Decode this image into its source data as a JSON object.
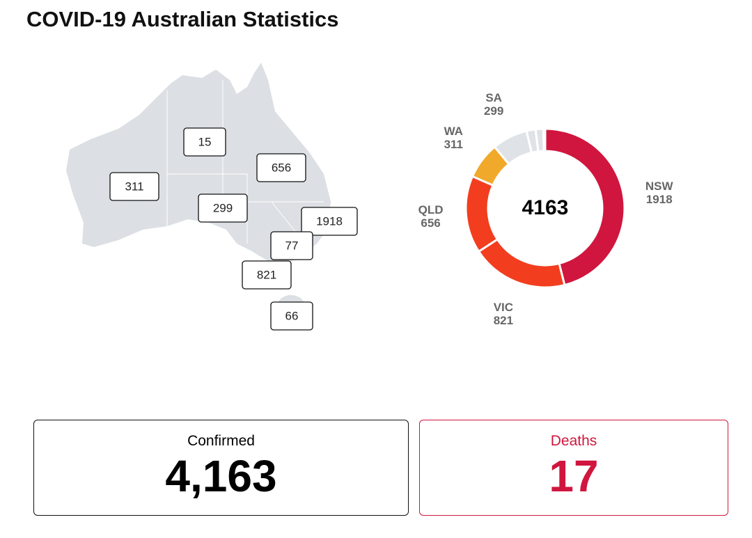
{
  "header": {
    "title": "COVID-19 Australian Statistics"
  },
  "map": {
    "labels": [
      15,
      656,
      311,
      299,
      1918,
      77,
      821,
      66
    ]
  },
  "chart_data": {
    "type": "pie",
    "donut": true,
    "total": 4163,
    "categories": [
      "NSW",
      "VIC",
      "QLD",
      "WA",
      "SA",
      null,
      null,
      null
    ],
    "values": [
      1918,
      821,
      656,
      311,
      299,
      77,
      66,
      15
    ],
    "colors": [
      "#d0163e",
      "#f23e1f",
      "#f23e1f",
      "#f0a92a",
      "#dfe2e6",
      "#dfe2e6",
      "#dfe2e6",
      "#dfe2e6"
    ]
  },
  "cards": [
    {
      "title": "Confirmed",
      "value": "4,163"
    },
    {
      "title": "Deaths",
      "value": "17"
    }
  ]
}
